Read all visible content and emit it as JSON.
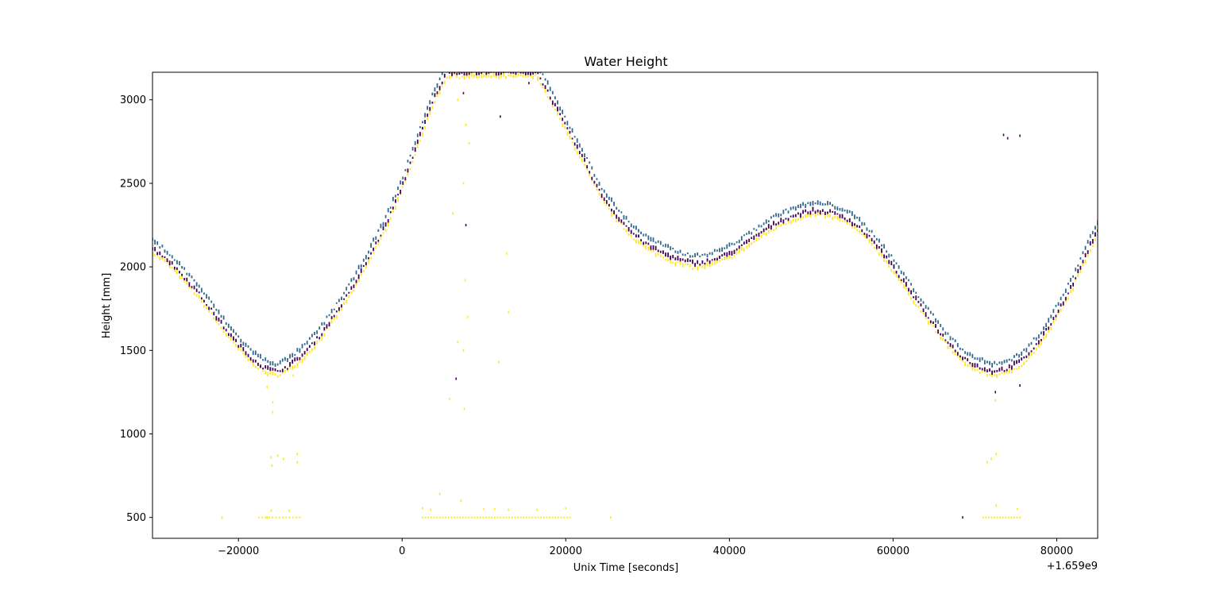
{
  "chart_data": {
    "type": "scatter",
    "title": "Water Height",
    "xlabel": "Unix Time [seconds]",
    "ylabel": "Height [mm]",
    "x_offset_label": "+1.659e9",
    "xlim": [
      -30500,
      85000
    ],
    "ylim": [
      375,
      3165
    ],
    "xticks": [
      -20000,
      0,
      20000,
      40000,
      60000,
      80000
    ],
    "xtick_labels": [
      "−20000",
      "0",
      "20000",
      "40000",
      "60000",
      "80000"
    ],
    "yticks": [
      500,
      1000,
      1500,
      2000,
      2500,
      3000
    ],
    "ytick_labels": [
      "500",
      "1000",
      "1500",
      "2000",
      "2500",
      "3000"
    ],
    "grid": false,
    "colors": {
      "upper": "#31688e",
      "middle": "#440154",
      "lower": "#fde725"
    },
    "profile_points": [
      [
        -30500,
        2110
      ],
      [
        -29000,
        2060
      ],
      [
        -27000,
        1960
      ],
      [
        -25000,
        1850
      ],
      [
        -23000,
        1720
      ],
      [
        -21000,
        1590
      ],
      [
        -19000,
        1480
      ],
      [
        -17000,
        1400
      ],
      [
        -15500,
        1375
      ],
      [
        -14000,
        1400
      ],
      [
        -12000,
        1480
      ],
      [
        -10000,
        1590
      ],
      [
        -8000,
        1730
      ],
      [
        -6000,
        1880
      ],
      [
        -4000,
        2060
      ],
      [
        -2000,
        2250
      ],
      [
        0,
        2480
      ],
      [
        2000,
        2760
      ],
      [
        4000,
        3020
      ],
      [
        5500,
        3165
      ],
      [
        16500,
        3165
      ],
      [
        18000,
        3030
      ],
      [
        20000,
        2840
      ],
      [
        22000,
        2660
      ],
      [
        24000,
        2460
      ],
      [
        26000,
        2320
      ],
      [
        28000,
        2210
      ],
      [
        30000,
        2130
      ],
      [
        32000,
        2080
      ],
      [
        34000,
        2040
      ],
      [
        36000,
        2020
      ],
      [
        38000,
        2040
      ],
      [
        40000,
        2080
      ],
      [
        42000,
        2140
      ],
      [
        44000,
        2210
      ],
      [
        46000,
        2270
      ],
      [
        48000,
        2310
      ],
      [
        50000,
        2335
      ],
      [
        52000,
        2330
      ],
      [
        54000,
        2300
      ],
      [
        56000,
        2230
      ],
      [
        58000,
        2130
      ],
      [
        60000,
        2000
      ],
      [
        62000,
        1860
      ],
      [
        64000,
        1720
      ],
      [
        66000,
        1590
      ],
      [
        68000,
        1480
      ],
      [
        70000,
        1410
      ],
      [
        72000,
        1375
      ],
      [
        74000,
        1390
      ],
      [
        76000,
        1450
      ],
      [
        78000,
        1560
      ],
      [
        80000,
        1720
      ],
      [
        82000,
        1900
      ],
      [
        84000,
        2120
      ],
      [
        85000,
        2220
      ]
    ],
    "series": [
      {
        "name": "",
        "color": "#31688e",
        "offset": 45
      },
      {
        "name": "",
        "color": "#440154",
        "offset": 0
      },
      {
        "name": "",
        "color": "#fde725",
        "offset": -25
      }
    ],
    "outliers": [
      {
        "x": 73500,
        "y": 2790,
        "color": "#440154"
      },
      {
        "x": 74000,
        "y": 2770,
        "color": "#440154"
      },
      {
        "x": 75500,
        "y": 2785,
        "color": "#440154"
      },
      {
        "x": 12000,
        "y": 2900,
        "color": "#440154"
      },
      {
        "x": 7500,
        "y": 3040,
        "color": "#440154"
      },
      {
        "x": 15500,
        "y": 3100,
        "color": "#440154"
      },
      {
        "x": 7800,
        "y": 2250,
        "color": "#440154"
      },
      {
        "x": 6600,
        "y": 1330,
        "color": "#440154"
      },
      {
        "x": 72500,
        "y": 1250,
        "color": "#440154"
      },
      {
        "x": 75500,
        "y": 1290,
        "color": "#440154"
      },
      {
        "x": 68500,
        "y": 500,
        "color": "#440154"
      },
      {
        "x": 6800,
        "y": 3000,
        "color": "#fde725"
      },
      {
        "x": 7800,
        "y": 2850,
        "color": "#fde725"
      },
      {
        "x": 8200,
        "y": 2740,
        "color": "#fde725"
      },
      {
        "x": 7500,
        "y": 2500,
        "color": "#fde725"
      },
      {
        "x": 6200,
        "y": 2320,
        "color": "#fde725"
      },
      {
        "x": 12800,
        "y": 2080,
        "color": "#fde725"
      },
      {
        "x": 7700,
        "y": 1920,
        "color": "#fde725"
      },
      {
        "x": 13000,
        "y": 1730,
        "color": "#fde725"
      },
      {
        "x": 8000,
        "y": 1700,
        "color": "#fde725"
      },
      {
        "x": 6800,
        "y": 1550,
        "color": "#fde725"
      },
      {
        "x": 11800,
        "y": 1430,
        "color": "#fde725"
      },
      {
        "x": 7500,
        "y": 1500,
        "color": "#fde725"
      },
      {
        "x": 5800,
        "y": 1210,
        "color": "#fde725"
      },
      {
        "x": 7600,
        "y": 1150,
        "color": "#fde725"
      },
      {
        "x": 7200,
        "y": 600,
        "color": "#fde725"
      },
      {
        "x": 4600,
        "y": 640,
        "color": "#fde725"
      },
      {
        "x": -16500,
        "y": 1280,
        "color": "#fde725"
      },
      {
        "x": -15800,
        "y": 1190,
        "color": "#fde725"
      },
      {
        "x": -15800,
        "y": 1130,
        "color": "#fde725"
      },
      {
        "x": -16000,
        "y": 860,
        "color": "#fde725"
      },
      {
        "x": -15200,
        "y": 870,
        "color": "#fde725"
      },
      {
        "x": -14500,
        "y": 850,
        "color": "#fde725"
      },
      {
        "x": -15900,
        "y": 810,
        "color": "#fde725"
      },
      {
        "x": -12800,
        "y": 880,
        "color": "#fde725"
      },
      {
        "x": -12800,
        "y": 830,
        "color": "#fde725"
      },
      {
        "x": -13300,
        "y": 1350,
        "color": "#fde725"
      },
      {
        "x": 72500,
        "y": 1200,
        "color": "#fde725"
      },
      {
        "x": 72600,
        "y": 880,
        "color": "#fde725"
      },
      {
        "x": 72000,
        "y": 850,
        "color": "#fde725"
      },
      {
        "x": 71500,
        "y": 830,
        "color": "#fde725"
      },
      {
        "x": 72600,
        "y": 570,
        "color": "#fde725"
      },
      {
        "x": 75200,
        "y": 550,
        "color": "#fde725"
      },
      {
        "x": -22000,
        "y": 500,
        "color": "#fde725"
      },
      {
        "x": -16500,
        "y": 500,
        "color": "#fde725"
      },
      {
        "x": -16000,
        "y": 540,
        "color": "#fde725"
      },
      {
        "x": -13800,
        "y": 540,
        "color": "#fde725"
      },
      {
        "x": 2500,
        "y": 555,
        "color": "#fde725"
      },
      {
        "x": 3500,
        "y": 545,
        "color": "#fde725"
      },
      {
        "x": 10000,
        "y": 550,
        "color": "#fde725"
      },
      {
        "x": 11300,
        "y": 550,
        "color": "#fde725"
      },
      {
        "x": 13000,
        "y": 545,
        "color": "#fde725"
      },
      {
        "x": 16500,
        "y": 545,
        "color": "#fde725"
      },
      {
        "x": 20000,
        "y": 555,
        "color": "#fde725"
      },
      {
        "x": 25500,
        "y": 500,
        "color": "#fde725"
      }
    ],
    "baseline_clusters": [
      {
        "y": 500,
        "x_start": -17500,
        "x_end": -12500,
        "count": 13
      },
      {
        "y": 500,
        "x_start": 2500,
        "x_end": 20500,
        "count": 52
      },
      {
        "y": 500,
        "x_start": 71000,
        "x_end": 75500,
        "count": 14
      }
    ]
  }
}
